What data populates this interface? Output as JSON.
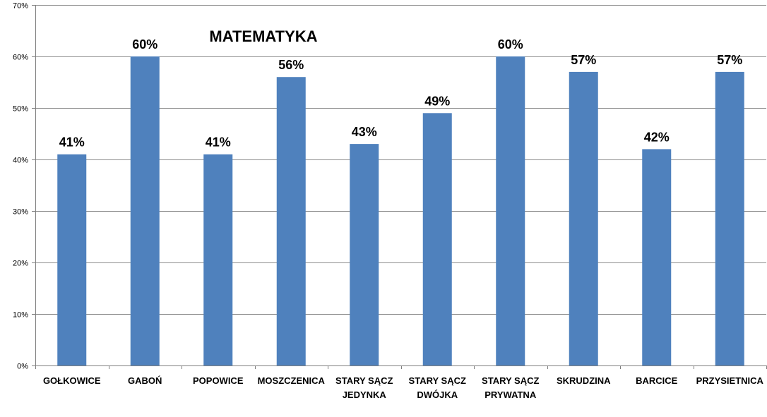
{
  "chart_data": {
    "type": "bar",
    "title": "MATEMATYKA",
    "categories": [
      [
        "GOŁKOWICE"
      ],
      [
        "GABOŃ"
      ],
      [
        "POPOWICE"
      ],
      [
        "MOSZCZENICA"
      ],
      [
        "STARY SĄCZ",
        "JEDYNKA"
      ],
      [
        "STARY SĄCZ",
        "DWÓJKA"
      ],
      [
        "STARY SĄCZ",
        "PRYWATNA"
      ],
      [
        "SKRUDZINA"
      ],
      [
        "BARCICE"
      ],
      [
        "PRZYSIETNICA"
      ]
    ],
    "values": [
      41,
      60,
      41,
      56,
      43,
      49,
      60,
      57,
      42,
      57
    ],
    "data_labels": [
      "41%",
      "60%",
      "41%",
      "56%",
      "43%",
      "49%",
      "60%",
      "57%",
      "42%",
      "57%"
    ],
    "ylim": [
      0,
      70
    ],
    "y_ticks": [
      0,
      10,
      20,
      30,
      40,
      50,
      60,
      70
    ],
    "y_tick_labels": [
      "0%",
      "10%",
      "20%",
      "30%",
      "40%",
      "50%",
      "60%",
      "70%"
    ],
    "grid": true,
    "bar_color": "#4f81bd",
    "gridline_color": "#8c8c8c",
    "axis_color": "#7f7f7f"
  }
}
